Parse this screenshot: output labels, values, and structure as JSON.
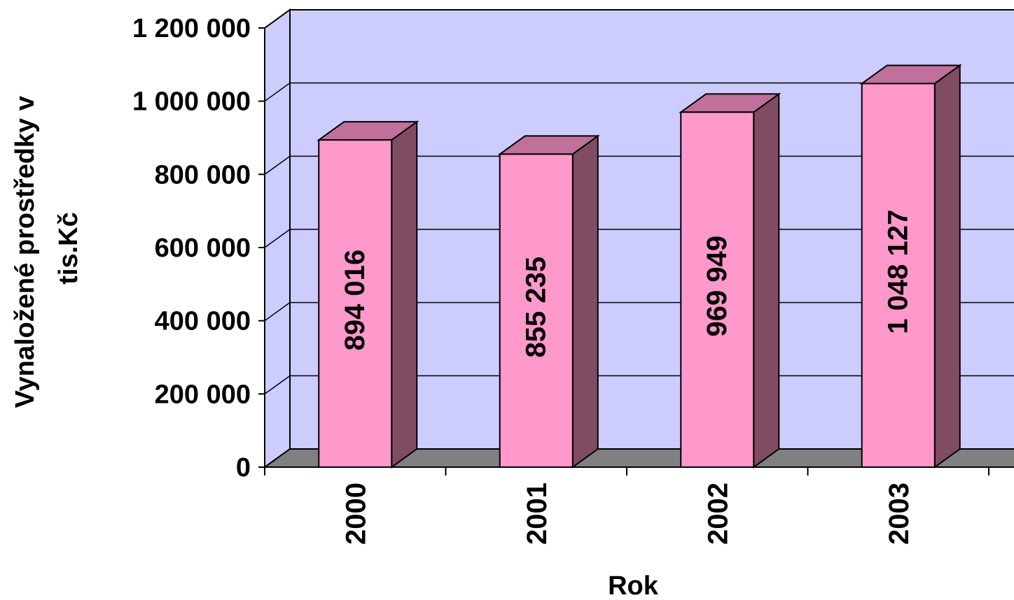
{
  "chart_data": {
    "type": "bar",
    "style": "3d-column",
    "title": "",
    "xlabel": "Rok",
    "ylabel_lines": [
      "Vynaložené prostředky v",
      "tis.Kč"
    ],
    "categories": [
      "2000",
      "2001",
      "2002",
      "2003"
    ],
    "values": [
      894016,
      855235,
      969949,
      1048127
    ],
    "value_labels": [
      "894 016",
      "855 235",
      "969 949",
      "1 048 127"
    ],
    "ylim": [
      0,
      1200000
    ],
    "yticks": [
      0,
      200000,
      400000,
      600000,
      800000,
      1000000,
      1200000
    ],
    "ytick_labels": [
      "0",
      "200 000",
      "400 000",
      "600 000",
      "800 000",
      "1 000 000",
      "1 200 000"
    ],
    "grid": true,
    "legend": "none",
    "colors": {
      "wall": "#ccccff",
      "floor": "#808080",
      "bar_front": "#ff99cc",
      "bar_top": "#c0709a",
      "bar_side": "#804c64",
      "gridline": "#000000"
    }
  }
}
